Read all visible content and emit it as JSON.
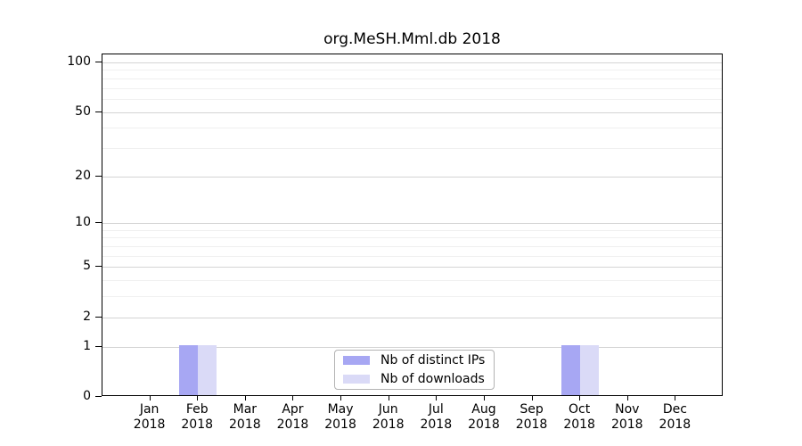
{
  "chart_data": {
    "type": "bar",
    "title": "org.MeSH.Mml.db 2018",
    "categories": [
      "Jan 2018",
      "Feb 2018",
      "Mar 2018",
      "Apr 2018",
      "May 2018",
      "Jun 2018",
      "Jul 2018",
      "Aug 2018",
      "Sep 2018",
      "Oct 2018",
      "Nov 2018",
      "Dec 2018"
    ],
    "series": [
      {
        "name": "Nb of distinct IPs",
        "color": "#a7a7f3",
        "values": [
          0,
          1,
          0,
          0,
          0,
          0,
          0,
          0,
          0,
          1,
          0,
          0
        ]
      },
      {
        "name": "Nb of downloads",
        "color": "#dadaf7",
        "values": [
          0,
          1,
          0,
          0,
          0,
          0,
          0,
          0,
          0,
          1,
          0,
          0
        ]
      }
    ],
    "xlabel": "",
    "ylabel": "",
    "yscale": "log1p",
    "ylim": [
      0,
      112
    ],
    "y_ticks_major": [
      0,
      1,
      2,
      5,
      10,
      20,
      50,
      100
    ],
    "y_gridlines_minor": [
      3,
      4,
      6,
      7,
      8,
      9,
      30,
      40,
      60,
      70,
      80,
      90
    ],
    "grid": "horizontal",
    "legend_position": "bottom-center",
    "colors": {
      "grid_major": "#d4d4d4",
      "grid_minor": "#f0f0f0",
      "axis": "#000000",
      "text": "#000000",
      "legend_border": "#b3b3b3",
      "background": "#ffffff"
    }
  }
}
